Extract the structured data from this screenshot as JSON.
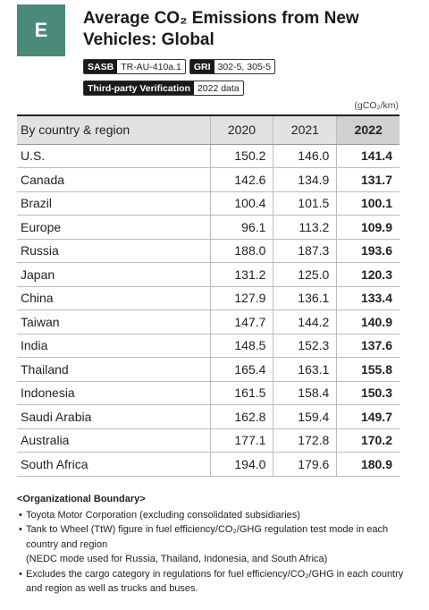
{
  "badge": "E",
  "header": {
    "title": "Average CO₂ Emissions from New Vehicles: Global"
  },
  "tags": [
    {
      "label": "SASB",
      "value": "TR-AU-410a.1"
    },
    {
      "label": "GRI",
      "value": "302-5, 305-5"
    },
    {
      "label": "Third-party Verification",
      "value": "2022 data"
    }
  ],
  "unit": "(gCO₂/km)",
  "table": {
    "columns": [
      "By country & region",
      "2020",
      "2021",
      "2022"
    ],
    "rows": [
      [
        "U.S.",
        "150.2",
        "146.0",
        "141.4"
      ],
      [
        "Canada",
        "142.6",
        "134.9",
        "131.7"
      ],
      [
        "Brazil",
        "100.4",
        "101.5",
        "100.1"
      ],
      [
        "Europe",
        "96.1",
        "113.2",
        "109.9"
      ],
      [
        "Russia",
        "188.0",
        "187.3",
        "193.6"
      ],
      [
        "Japan",
        "131.2",
        "125.0",
        "120.3"
      ],
      [
        "China",
        "127.9",
        "136.1",
        "133.4"
      ],
      [
        "Taiwan",
        "147.7",
        "144.2",
        "140.9"
      ],
      [
        "India",
        "148.5",
        "152.3",
        "137.6"
      ],
      [
        "Thailand",
        "165.4",
        "163.1",
        "155.8"
      ],
      [
        "Indonesia",
        "161.5",
        "158.4",
        "150.3"
      ],
      [
        "Saudi Arabia",
        "162.8",
        "159.4",
        "149.7"
      ],
      [
        "Australia",
        "177.1",
        "172.8",
        "170.2"
      ],
      [
        "South Africa",
        "194.0",
        "179.6",
        "180.9"
      ]
    ]
  },
  "notes": {
    "heading": "<Organizational Boundary>",
    "items": [
      "Toyota Motor Corporation (excluding consolidated subsidiaries)",
      "Tank to Wheel (TtW) figure in fuel efficiency/CO₂/GHG regulation test mode in each country and region",
      "(NEDC mode used for Russia, Thailand, Indonesia, and South Africa)",
      "Excludes the cargo category in regulations for fuel efficiency/CO₂/GHG in each country and region as well as trucks and buses."
    ]
  }
}
